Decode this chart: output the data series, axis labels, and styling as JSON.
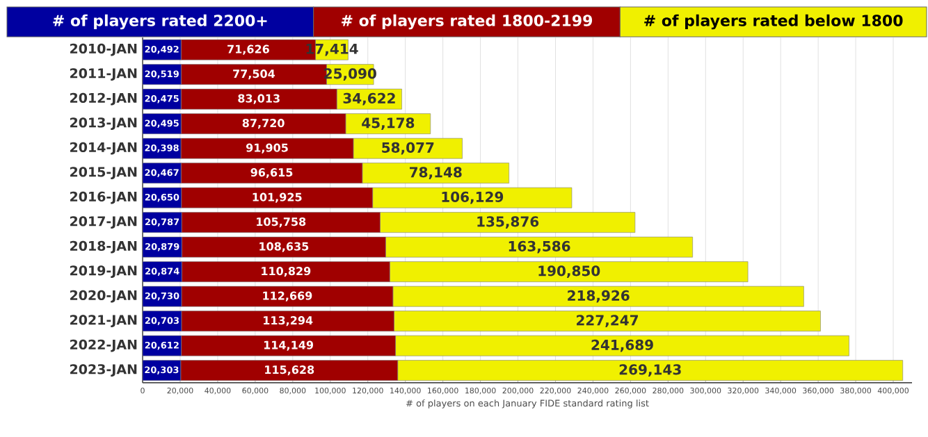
{
  "chart_data": {
    "type": "bar",
    "orientation": "horizontal",
    "stacked": true,
    "xlabel": "# of players on each January FIDE standard rating list",
    "categories": [
      "2010-JAN",
      "2011-JAN",
      "2012-JAN",
      "2013-JAN",
      "2014-JAN",
      "2015-JAN",
      "2016-JAN",
      "2017-JAN",
      "2018-JAN",
      "2019-JAN",
      "2020-JAN",
      "2021-JAN",
      "2022-JAN",
      "2023-JAN"
    ],
    "series": [
      {
        "name": "# of players rated 2200+",
        "color": "#0000a0",
        "values": [
          20492,
          20519,
          20475,
          20495,
          20398,
          20467,
          20650,
          20787,
          20879,
          20874,
          20730,
          20703,
          20612,
          20303
        ],
        "value_labels": [
          "20,492",
          "20,519",
          "20,475",
          "20,495",
          "20,398",
          "20,467",
          "20,650",
          "20,787",
          "20,879",
          "20,874",
          "20,730",
          "20,703",
          "20,612",
          "20,303"
        ]
      },
      {
        "name": "# of players rated 1800-2199",
        "color": "#a00000",
        "values": [
          71626,
          77504,
          83013,
          87720,
          91905,
          96615,
          101925,
          105758,
          108635,
          110829,
          112669,
          113294,
          114149,
          115628
        ],
        "value_labels": [
          "71,626",
          "77,504",
          "83,013",
          "87,720",
          "91,905",
          "96,615",
          "101,925",
          "105,758",
          "108,635",
          "110,829",
          "112,669",
          "113,294",
          "114,149",
          "115,628"
        ]
      },
      {
        "name": "# of players rated below 1800",
        "color": "#f0f000",
        "values": [
          17414,
          25090,
          34622,
          45178,
          58077,
          78148,
          106129,
          135876,
          163586,
          190850,
          218926,
          227247,
          241689,
          269143
        ],
        "value_labels": [
          "17,414",
          "25,090",
          "34,622",
          "45,178",
          "58,077",
          "78,148",
          "106,129",
          "135,876",
          "163,586",
          "190,850",
          "218,926",
          "227,247",
          "241,689",
          "269,143"
        ]
      }
    ],
    "xlim": [
      0,
      410000
    ],
    "xticks": [
      0,
      {
        "value": 20000,
        "label": "20,000"
      },
      {
        "value": 40000,
        "label": "40,000"
      },
      {
        "value": 60000,
        "label": "60,000"
      },
      {
        "value": 80000,
        "label": "80,000"
      },
      {
        "value": 100000,
        "label": "100,000"
      },
      {
        "value": 120000,
        "label": "120,000"
      },
      {
        "value": 140000,
        "label": "140,000"
      },
      {
        "value": 160000,
        "label": "160,000"
      },
      {
        "value": 180000,
        "label": "180,000"
      },
      {
        "value": 200000,
        "label": "200,000"
      },
      {
        "value": 220000,
        "label": "220,000"
      },
      {
        "value": 240000,
        "label": "240,000"
      },
      {
        "value": 260000,
        "label": "260,000"
      },
      {
        "value": 280000,
        "label": "280,000"
      },
      {
        "value": 300000,
        "label": "300,000"
      },
      {
        "value": 320000,
        "label": "320,000"
      },
      {
        "value": 340000,
        "label": "340,000"
      },
      {
        "value": 360000,
        "label": "360,000"
      },
      {
        "value": 380000,
        "label": "380,000"
      },
      {
        "value": 400000,
        "label": "400,000"
      }
    ],
    "grid": "x",
    "legend": "top",
    "data_labels": true
  }
}
